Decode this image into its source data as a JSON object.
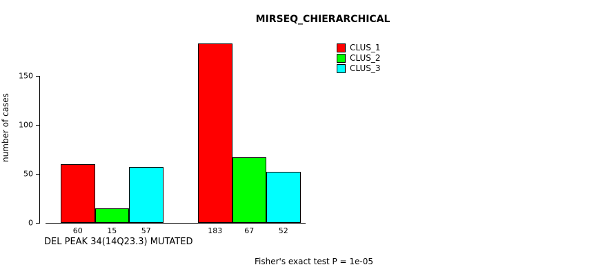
{
  "chart_data": {
    "type": "bar",
    "title": "MIRSEQ_CHIERARCHICAL",
    "xlabel": "DEL PEAK 34(14Q23.3) MUTATED",
    "ylabel": "number of cases",
    "annotation": "Fisher's exact test P = 1e-05",
    "yticks": [
      0,
      50,
      100,
      150
    ],
    "ylim": [
      0,
      190
    ],
    "grid": false,
    "legend_position": "top-right",
    "n_groups": 2,
    "series": [
      {
        "name": "CLUS_1",
        "color": "#FF0000",
        "values": [
          60,
          183
        ]
      },
      {
        "name": "CLUS_2",
        "color": "#00FF00",
        "values": [
          15,
          67
        ]
      },
      {
        "name": "CLUS_3",
        "color": "#00FFFF",
        "values": [
          57,
          52
        ]
      }
    ]
  }
}
